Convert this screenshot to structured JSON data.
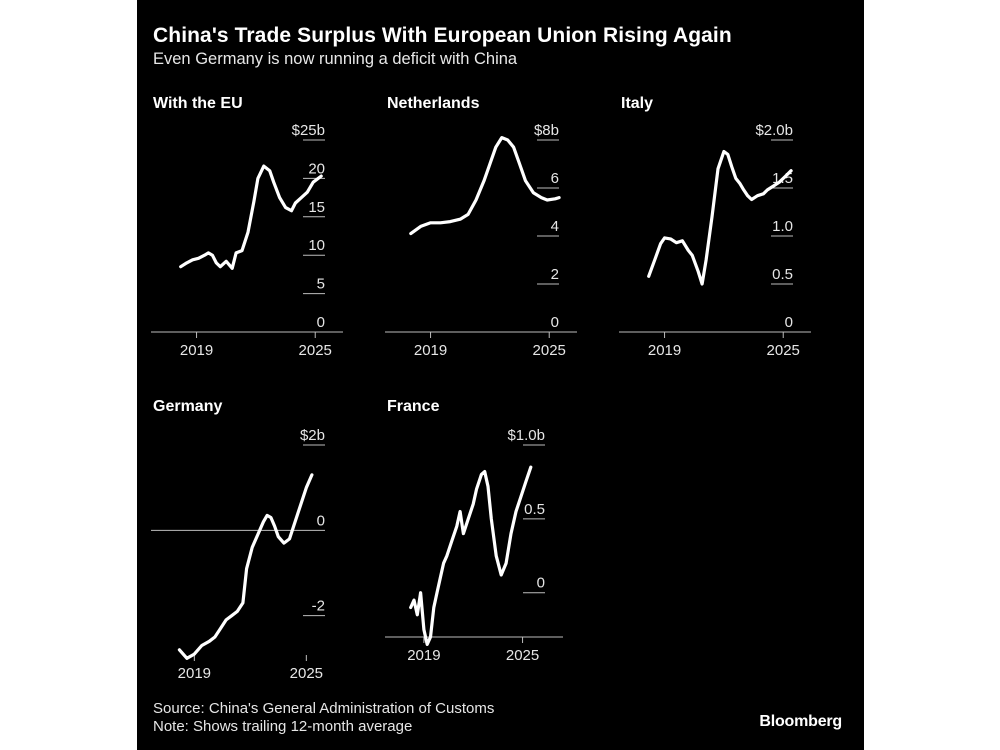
{
  "header": {
    "title": "China's Trade Surplus With European Union Rising Again",
    "subtitle": "Even Germany is now running a deficit with China"
  },
  "footer": {
    "source": "Source: China's General Administration of Customs",
    "note": "Note: Shows trailing 12-month average",
    "brand": "Bloomberg"
  },
  "colors": {
    "background": "#000000",
    "line": "#ffffff",
    "text": "#e6e6e6"
  },
  "chart_data": [
    {
      "id": "eu",
      "type": "line",
      "title": "With the EU",
      "x_ticks": [
        2019,
        2025
      ],
      "xlim": [
        2017,
        2026
      ],
      "ylim": [
        0,
        25
      ],
      "y_ticks": [
        {
          "value": 25,
          "label": "$25b"
        },
        {
          "value": 20,
          "label": "20"
        },
        {
          "value": 15,
          "label": "15"
        },
        {
          "value": 10,
          "label": "10"
        },
        {
          "value": 5,
          "label": "5"
        },
        {
          "value": 0,
          "label": "0"
        }
      ],
      "zero_line": false,
      "x": [
        2018.2,
        2018.5,
        2018.8,
        2019.1,
        2019.4,
        2019.6,
        2019.8,
        2020.0,
        2020.2,
        2020.5,
        2020.8,
        2021.0,
        2021.3,
        2021.6,
        2021.9,
        2022.1,
        2022.4,
        2022.7,
        2022.9,
        2023.2,
        2023.5,
        2023.8,
        2024.0,
        2024.3,
        2024.6,
        2024.9,
        2025.3
      ],
      "y": [
        8.5,
        9.0,
        9.4,
        9.6,
        10.0,
        10.3,
        10.0,
        9.0,
        8.5,
        9.2,
        8.3,
        10.3,
        10.6,
        13.0,
        17.0,
        20.0,
        21.6,
        21.0,
        19.5,
        17.5,
        16.2,
        15.8,
        16.8,
        17.5,
        18.2,
        19.5,
        20.3
      ]
    },
    {
      "id": "nl",
      "type": "line",
      "title": "Netherlands",
      "x_ticks": [
        2019,
        2025
      ],
      "xlim": [
        2017,
        2026
      ],
      "ylim": [
        0,
        8
      ],
      "y_ticks": [
        {
          "value": 8,
          "label": "$8b"
        },
        {
          "value": 6,
          "label": "6"
        },
        {
          "value": 4,
          "label": "4"
        },
        {
          "value": 2,
          "label": "2"
        },
        {
          "value": 0,
          "label": "0"
        }
      ],
      "zero_line": false,
      "x": [
        2018.0,
        2018.5,
        2019.0,
        2019.5,
        2020.0,
        2020.5,
        2020.9,
        2021.3,
        2021.7,
        2022.0,
        2022.3,
        2022.6,
        2022.9,
        2023.2,
        2023.5,
        2023.8,
        2024.2,
        2024.6,
        2024.9,
        2025.3,
        2025.5
      ],
      "y": [
        4.1,
        4.4,
        4.55,
        4.55,
        4.6,
        4.7,
        4.9,
        5.5,
        6.3,
        7.0,
        7.7,
        8.1,
        8.0,
        7.7,
        7.0,
        6.3,
        5.8,
        5.6,
        5.5,
        5.55,
        5.6
      ]
    },
    {
      "id": "it",
      "type": "line",
      "title": "Italy",
      "x_ticks": [
        2019,
        2025
      ],
      "xlim": [
        2017,
        2026
      ],
      "ylim": [
        0,
        2.0
      ],
      "y_ticks": [
        {
          "value": 2.0,
          "label": "$2.0b"
        },
        {
          "value": 1.5,
          "label": "1.5"
        },
        {
          "value": 1.0,
          "label": "1.0"
        },
        {
          "value": 0.5,
          "label": "0.5"
        },
        {
          "value": 0,
          "label": "0"
        }
      ],
      "zero_line": false,
      "x": [
        2018.2,
        2018.5,
        2018.8,
        2019.0,
        2019.3,
        2019.6,
        2019.9,
        2020.2,
        2020.4,
        2020.7,
        2020.9,
        2021.1,
        2021.4,
        2021.7,
        2022.0,
        2022.2,
        2022.4,
        2022.6,
        2022.8,
        2023.0,
        2023.2,
        2023.4,
        2023.7,
        2024.0,
        2024.2,
        2024.5,
        2024.8,
        2025.1,
        2025.4
      ],
      "y": [
        0.58,
        0.75,
        0.92,
        0.98,
        0.97,
        0.93,
        0.95,
        0.85,
        0.8,
        0.63,
        0.5,
        0.75,
        1.2,
        1.7,
        1.88,
        1.85,
        1.72,
        1.6,
        1.55,
        1.48,
        1.42,
        1.38,
        1.42,
        1.44,
        1.48,
        1.52,
        1.56,
        1.62,
        1.68
      ]
    },
    {
      "id": "de",
      "type": "line",
      "title": "Germany",
      "x_ticks": [
        2019,
        2025
      ],
      "xlim": [
        2017,
        2026
      ],
      "ylim": [
        -2.5,
        2.0
      ],
      "y_ticks": [
        {
          "value": 2,
          "label": "$2b"
        },
        {
          "value": 0,
          "label": "0"
        },
        {
          "value": -2,
          "label": "-2"
        }
      ],
      "zero_line": true,
      "x": [
        2018.2,
        2018.6,
        2019.0,
        2019.4,
        2019.8,
        2020.1,
        2020.4,
        2020.7,
        2021.0,
        2021.3,
        2021.6,
        2021.8,
        2022.1,
        2022.4,
        2022.7,
        2022.9,
        2023.1,
        2023.3,
        2023.5,
        2023.8,
        2024.1,
        2024.4,
        2024.7,
        2025.0,
        2025.3
      ],
      "y": [
        -2.8,
        -3.0,
        -2.9,
        -2.7,
        -2.6,
        -2.5,
        -2.3,
        -2.1,
        -2.0,
        -1.9,
        -1.7,
        -0.9,
        -0.4,
        -0.1,
        0.2,
        0.35,
        0.3,
        0.1,
        -0.15,
        -0.3,
        -0.2,
        0.2,
        0.6,
        1.0,
        1.3
      ]
    },
    {
      "id": "fr",
      "type": "line",
      "title": "France",
      "x_ticks": [
        2019,
        2025
      ],
      "xlim": [
        2017,
        2026
      ],
      "ylim": [
        -0.3,
        1.0
      ],
      "y_ticks": [
        {
          "value": 1.0,
          "label": "$1.0b"
        },
        {
          "value": 0.5,
          "label": "0.5"
        },
        {
          "value": 0,
          "label": "0"
        }
      ],
      "zero_line": false,
      "x": [
        2018.2,
        2018.4,
        2018.6,
        2018.8,
        2019.0,
        2019.2,
        2019.4,
        2019.6,
        2019.8,
        2020.0,
        2020.2,
        2020.4,
        2020.7,
        2021.0,
        2021.2,
        2021.4,
        2021.7,
        2022.0,
        2022.2,
        2022.5,
        2022.7,
        2022.9,
        2023.1,
        2023.4,
        2023.7,
        2024.0,
        2024.3,
        2024.6,
        2024.9,
        2025.2,
        2025.5
      ],
      "y": [
        -0.1,
        -0.05,
        -0.15,
        0.0,
        -0.25,
        -0.35,
        -0.3,
        -0.1,
        0.0,
        0.1,
        0.2,
        0.25,
        0.35,
        0.45,
        0.55,
        0.4,
        0.5,
        0.6,
        0.7,
        0.8,
        0.82,
        0.72,
        0.5,
        0.25,
        0.12,
        0.2,
        0.4,
        0.55,
        0.65,
        0.75,
        0.85
      ]
    }
  ]
}
